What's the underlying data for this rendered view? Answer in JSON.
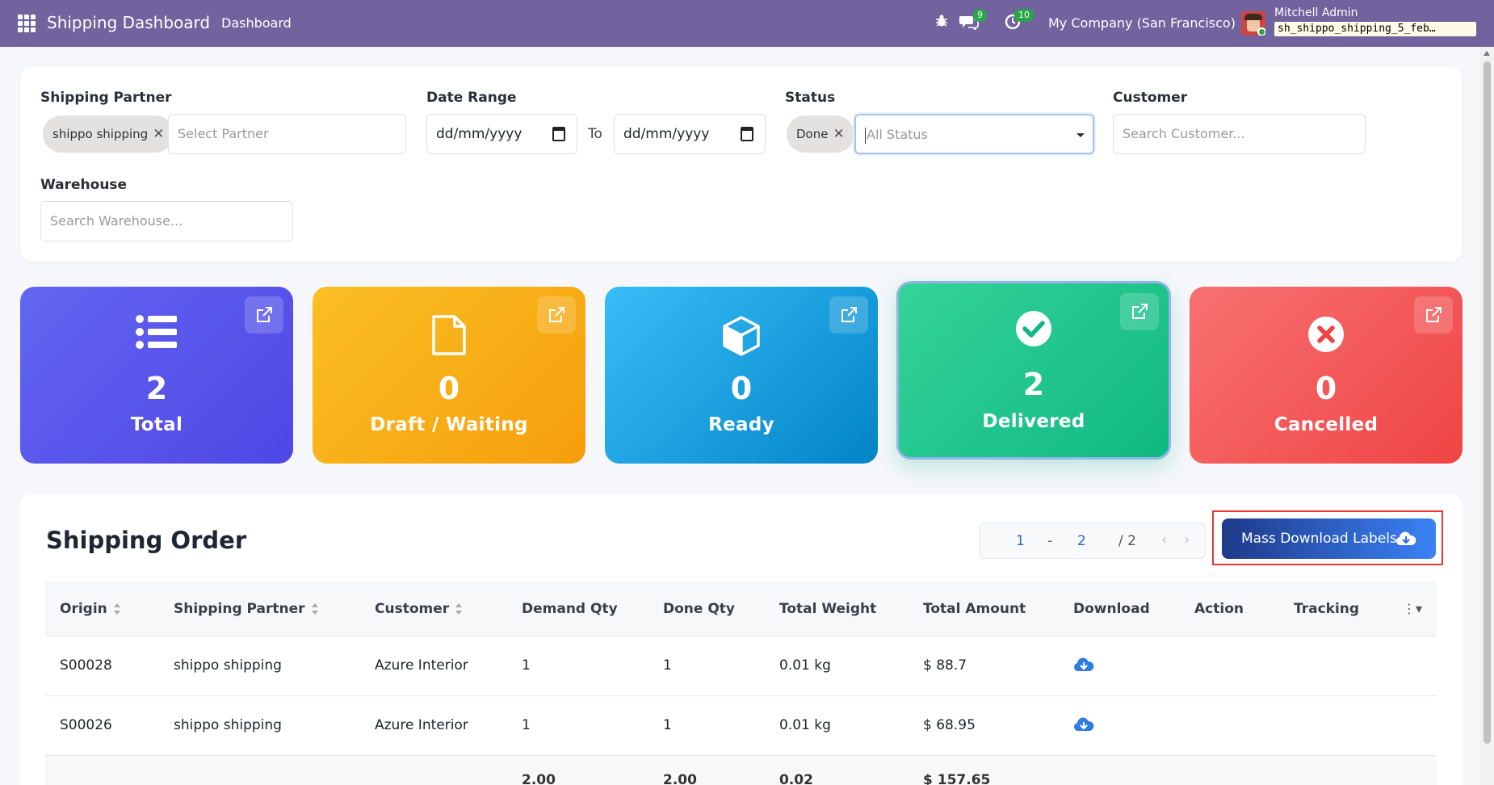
{
  "navbar": {
    "app_title": "Shipping Dashboard",
    "menu_item": "Dashboard",
    "messages_count": "9",
    "activities_count": "10",
    "company": "My Company (San Francisco)",
    "user_name": "Mitchell Admin",
    "database": "sh_shippo_shipping_5_feb…"
  },
  "filters": {
    "shipping_partner": {
      "label": "Shipping Partner",
      "chip": "shippo shipping",
      "placeholder": "Select Partner"
    },
    "date_range": {
      "label": "Date Range",
      "from": "dd/mm/yyyy",
      "to_label": "To",
      "to": "dd/mm/yyyy"
    },
    "status": {
      "label": "Status",
      "chip": "Done",
      "placeholder": "All Status"
    },
    "customer": {
      "label": "Customer",
      "placeholder": "Search Customer..."
    },
    "warehouse": {
      "label": "Warehouse",
      "placeholder": "Search Warehouse..."
    }
  },
  "stats": [
    {
      "label": "Total",
      "value": "2",
      "icon": "list-icon",
      "color": "#4f46e5"
    },
    {
      "label": "Draft / Waiting",
      "value": "0",
      "icon": "file-icon",
      "color": "#f59e0b"
    },
    {
      "label": "Ready",
      "value": "0",
      "icon": "box-icon",
      "color": "#0284c7"
    },
    {
      "label": "Delivered",
      "value": "2",
      "icon": "check-circle-icon",
      "color": "#10b981"
    },
    {
      "label": "Cancelled",
      "value": "0",
      "icon": "times-circle-icon",
      "color": "#ef4444"
    }
  ],
  "orders": {
    "title": "Shipping Order",
    "pager": {
      "from": "1",
      "sep": "-",
      "to": "2",
      "total": "/ 2"
    },
    "mass_download_label": "Mass Download Labels",
    "columns": [
      "Origin",
      "Shipping Partner",
      "Customer",
      "Demand Qty",
      "Done Qty",
      "Total Weight",
      "Total Amount",
      "Download",
      "Action",
      "Tracking"
    ],
    "rows": [
      {
        "origin": "S00028",
        "partner": "shippo shipping",
        "customer": "Azure Interior",
        "demand": "1",
        "done": "1",
        "weight": "0.01 kg",
        "amount": "$ 88.7"
      },
      {
        "origin": "S00026",
        "partner": "shippo shipping",
        "customer": "Azure Interior",
        "demand": "1",
        "done": "1",
        "weight": "0.01 kg",
        "amount": "$ 68.95"
      }
    ],
    "totals": {
      "demand": "2.00",
      "done": "2.00",
      "weight": "0.02",
      "amount": "$ 157.65"
    }
  }
}
